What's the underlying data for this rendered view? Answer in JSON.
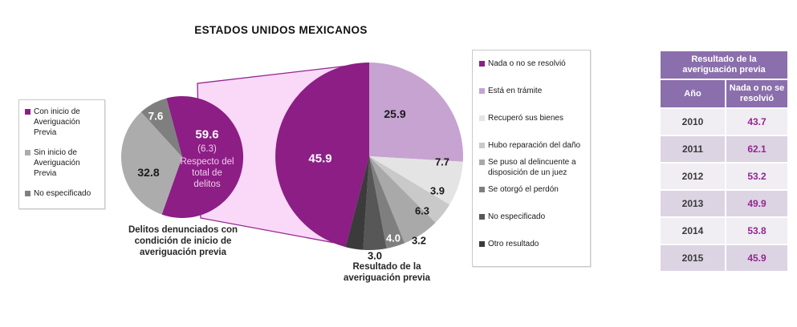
{
  "title": "ESTADOS UNIDOS MEXICANOS",
  "colors": {
    "purple_dark": "#8C1E85",
    "lavender": "#C6A3D1",
    "funnel_pink": "#F9D8F8",
    "funnel_stroke": "#93278F",
    "table_header_purple": "#8A6FAC",
    "table_value_purple": "#93278F",
    "row_light": "#F0EDF3",
    "row_dark": "#DCD4E3"
  },
  "chart_data": [
    {
      "type": "pie",
      "name": "delitos-denunciados",
      "title": "Delitos denunciados con condición de inicio de averiguación previa",
      "legend_position": "left",
      "slices": [
        {
          "label": "Con inicio de Averiguación Previa",
          "value": 59.6,
          "color": "#8C1E85",
          "note_value": "(6.3)",
          "note_lines": [
            "Respecto del",
            "total de",
            "delitos"
          ]
        },
        {
          "label": "Sin inicio de Averiguación Previa",
          "value": 32.8,
          "color": "#ACACAC"
        },
        {
          "label": "No especificado",
          "value": 7.6,
          "color": "#7F7F7F"
        }
      ]
    },
    {
      "type": "pie",
      "name": "resultado-averiguacion",
      "title": "Resultado de la averiguación previa",
      "legend_position": "right",
      "slices": [
        {
          "label": "Nada o no se resolvió",
          "value": 45.9,
          "color": "#8C1E85"
        },
        {
          "label": "Está en trámite",
          "value": 25.9,
          "color": "#C6A3D1"
        },
        {
          "label": "Recuperó sus bienes",
          "value": 7.7,
          "color": "#E4E4E4"
        },
        {
          "label": "Hubo reparación del daño",
          "value": 3.9,
          "color": "#C9C9C9"
        },
        {
          "label": "Se puso al delincuente a disposición de un juez",
          "value": 6.3,
          "color": "#A9A9A9"
        },
        {
          "label": "Se otorgó el perdón",
          "value": 3.2,
          "color": "#7F7F7F"
        },
        {
          "label": "No especificado",
          "value": 4.0,
          "color": "#575757"
        },
        {
          "label": "Otro resultado",
          "value": 3.0,
          "color": "#3B3B3B"
        }
      ]
    },
    {
      "type": "table",
      "name": "resultado-por-anio",
      "title": "Resultado de la averiguación previa",
      "columns": [
        "Año",
        "Nada o no se resolvió"
      ],
      "rows": [
        [
          "2010",
          "43.7"
        ],
        [
          "2011",
          "62.1"
        ],
        [
          "2012",
          "53.2"
        ],
        [
          "2013",
          "49.9"
        ],
        [
          "2014",
          "53.8"
        ],
        [
          "2015",
          "45.9"
        ]
      ]
    }
  ]
}
